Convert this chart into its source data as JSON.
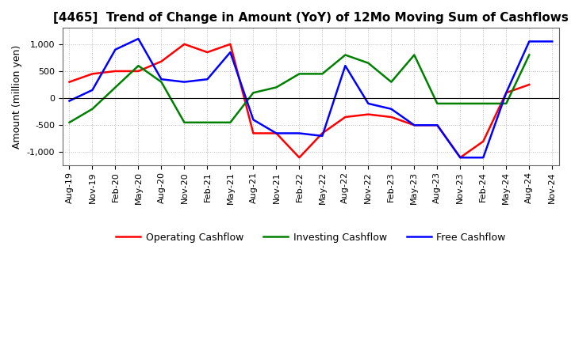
{
  "title": "[4465]  Trend of Change in Amount (YoY) of 12Mo Moving Sum of Cashflows",
  "ylabel": "Amount (million yen)",
  "title_fontsize": 11,
  "label_fontsize": 9,
  "tick_fontsize": 8,
  "background_color": "#ffffff",
  "grid_color": "#bbbbbb",
  "x_labels": [
    "Aug-19",
    "Nov-19",
    "Feb-20",
    "May-20",
    "Aug-20",
    "Nov-20",
    "Feb-21",
    "May-21",
    "Aug-21",
    "Nov-21",
    "Feb-22",
    "May-22",
    "Aug-22",
    "Nov-22",
    "Feb-23",
    "May-23",
    "Aug-23",
    "Nov-23",
    "Feb-24",
    "May-24",
    "Aug-24",
    "Nov-24"
  ],
  "operating_cashflow": [
    300,
    450,
    500,
    500,
    680,
    1000,
    850,
    1000,
    -650,
    -650,
    -1100,
    -650,
    -350,
    -300,
    -350,
    -500,
    -500,
    -1100,
    -800,
    100,
    250,
    null
  ],
  "investing_cashflow": [
    -450,
    -200,
    200,
    600,
    300,
    -450,
    -450,
    -450,
    100,
    200,
    450,
    450,
    800,
    650,
    300,
    800,
    -100,
    -100,
    -100,
    -100,
    800,
    null
  ],
  "free_cashflow": [
    -50,
    150,
    900,
    1100,
    350,
    300,
    350,
    850,
    -400,
    -650,
    -650,
    -700,
    600,
    -100,
    -200,
    -500,
    -500,
    -1100,
    -1100,
    100,
    1050,
    1050
  ],
  "ylim": [
    -1250,
    1300
  ],
  "yticks": [
    -1000,
    -500,
    0,
    500,
    1000
  ],
  "operating_color": "#ff0000",
  "investing_color": "#008000",
  "free_color": "#0000ff"
}
